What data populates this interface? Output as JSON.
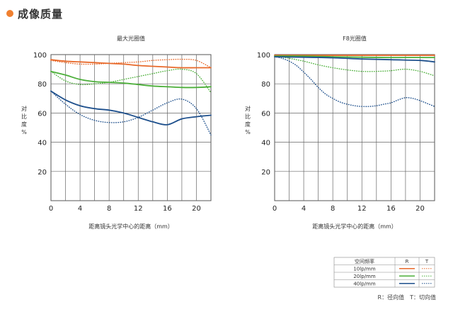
{
  "header": {
    "title": "成像质量",
    "accent": "#f08030"
  },
  "colors": {
    "r10": "#e8692a",
    "r20": "#4caf3a",
    "r40": "#1d4f8c",
    "t10": "#e8692a",
    "t20": "#4caf3a",
    "t40": "#1d4f8c",
    "axis": "#555555",
    "grid": "#666666"
  },
  "chart_data": [
    {
      "type": "line",
      "title": "最大光圈值",
      "xlabel": "距离镜头光学中心的距离（mm）",
      "ylabel": "对比度%",
      "xlim": [
        0,
        22
      ],
      "ylim": [
        0,
        100
      ],
      "xticks": [
        0,
        4,
        8,
        12,
        16,
        20
      ],
      "yticks": [
        20,
        40,
        60,
        80,
        100
      ],
      "grid": true,
      "series": [
        {
          "name": "10lp/mm R",
          "style": "solid",
          "color": "#e8692a",
          "x": [
            0,
            2,
            4,
            6,
            8,
            10,
            12,
            14,
            16,
            18,
            20,
            22
          ],
          "y": [
            96.5,
            95.5,
            95,
            94.5,
            94,
            93.5,
            92.5,
            92,
            91.5,
            91,
            91,
            91
          ]
        },
        {
          "name": "10lp/mm T",
          "style": "dotted",
          "color": "#e8692a",
          "x": [
            0,
            2,
            4,
            6,
            8,
            10,
            12,
            14,
            16,
            18,
            20,
            22
          ],
          "y": [
            96,
            94.5,
            93.5,
            93.5,
            94,
            94.5,
            95,
            96,
            96.5,
            96.8,
            96,
            91
          ]
        },
        {
          "name": "20lp/mm R",
          "style": "solid",
          "color": "#4caf3a",
          "x": [
            0,
            2,
            4,
            6,
            8,
            10,
            12,
            14,
            16,
            18,
            20,
            22
          ],
          "y": [
            88.5,
            86,
            83,
            81.5,
            81,
            80.5,
            79.5,
            78.5,
            78,
            77.5,
            77.5,
            78
          ]
        },
        {
          "name": "20lp/mm T",
          "style": "dotted",
          "color": "#4caf3a",
          "x": [
            0,
            2,
            4,
            6,
            8,
            10,
            12,
            14,
            16,
            18,
            20,
            22
          ],
          "y": [
            88.5,
            82,
            79.5,
            80,
            81,
            83,
            85,
            87,
            89,
            90,
            87,
            74
          ]
        },
        {
          "name": "40lp/mm R",
          "style": "solid",
          "color": "#1d4f8c",
          "x": [
            0,
            2,
            4,
            6,
            8,
            10,
            12,
            14,
            16,
            18,
            20,
            22
          ],
          "y": [
            75,
            69,
            65,
            63,
            62,
            60,
            57,
            54,
            52,
            56,
            57.5,
            58.5
          ]
        },
        {
          "name": "40lp/mm T",
          "style": "dotted",
          "color": "#1d4f8c",
          "x": [
            0,
            2,
            4,
            6,
            8,
            10,
            12,
            14,
            16,
            18,
            20,
            22
          ],
          "y": [
            75,
            66,
            59,
            55,
            53.5,
            54,
            57,
            62,
            67,
            69.5,
            63,
            45
          ]
        }
      ]
    },
    {
      "type": "line",
      "title": "F8光圈值",
      "xlabel": "距离镜头光学中心的距离（mm）",
      "ylabel": "对比度%",
      "xlim": [
        0,
        22
      ],
      "ylim": [
        0,
        100
      ],
      "xticks": [
        0,
        4,
        8,
        12,
        16,
        20
      ],
      "yticks": [
        20,
        40,
        60,
        80,
        100
      ],
      "grid": true,
      "series": [
        {
          "name": "10lp/mm R",
          "style": "solid",
          "color": "#e8692a",
          "x": [
            0,
            4,
            8,
            12,
            16,
            20,
            22
          ],
          "y": [
            99.5,
            99.5,
            99.5,
            99.5,
            99.5,
            99.5,
            99.5
          ]
        },
        {
          "name": "10lp/mm T",
          "style": "dotted",
          "color": "#e8692a",
          "x": [
            0,
            4,
            8,
            12,
            16,
            20,
            22
          ],
          "y": [
            99.5,
            99.5,
            99.5,
            99.5,
            99.5,
            99.5,
            99.5
          ]
        },
        {
          "name": "20lp/mm R",
          "style": "solid",
          "color": "#4caf3a",
          "x": [
            0,
            4,
            8,
            12,
            16,
            20,
            22
          ],
          "y": [
            99,
            99,
            98.5,
            98.2,
            98,
            98,
            98
          ]
        },
        {
          "name": "20lp/mm T",
          "style": "dotted",
          "color": "#4caf3a",
          "x": [
            0,
            2,
            4,
            6,
            8,
            10,
            12,
            14,
            16,
            18,
            20,
            22
          ],
          "y": [
            99,
            97.5,
            95.5,
            93,
            91,
            89.5,
            88.5,
            88.5,
            89,
            90,
            88.5,
            85.5
          ]
        },
        {
          "name": "40lp/mm R",
          "style": "solid",
          "color": "#1d4f8c",
          "x": [
            0,
            4,
            8,
            12,
            16,
            20,
            22
          ],
          "y": [
            98.5,
            98.2,
            97.8,
            97,
            96.5,
            96,
            95
          ]
        },
        {
          "name": "40lp/mm T",
          "style": "dotted",
          "color": "#1d4f8c",
          "x": [
            0,
            1,
            2,
            3,
            4,
            5,
            6,
            7,
            8,
            9,
            10,
            11,
            12,
            13,
            14,
            15,
            16,
            17,
            18,
            19,
            20,
            21,
            22
          ],
          "y": [
            98.5,
            97.5,
            95.5,
            92.5,
            88,
            83,
            77.5,
            73,
            70,
            67.5,
            66,
            65,
            64.5,
            64.5,
            65,
            66,
            67,
            69,
            70.5,
            70,
            68.5,
            66.5,
            64.5
          ]
        }
      ]
    }
  ],
  "legend": {
    "header": [
      "空间频率",
      "R",
      "T"
    ],
    "rows": [
      {
        "label": "10lp/mm",
        "key": "10"
      },
      {
        "label": "20lp/mm",
        "key": "20"
      },
      {
        "label": "40lp/mm",
        "key": "40"
      }
    ],
    "note": "R：径向值　T：切向值"
  }
}
